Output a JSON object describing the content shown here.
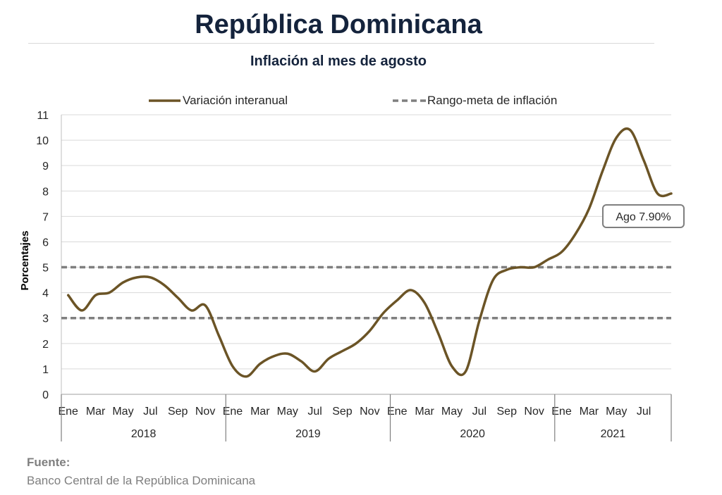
{
  "header": {
    "title": "República Dominicana",
    "subtitle": "Inflación al mes de agosto"
  },
  "source": {
    "label": "Fuente:",
    "text": "Banco Central de la República Dominicana"
  },
  "chart_data": {
    "type": "line",
    "ylabel": "Porcentajes",
    "ylim": [
      0,
      11
    ],
    "yticks": [
      0,
      1,
      2,
      3,
      4,
      5,
      6,
      7,
      8,
      9,
      10,
      11
    ],
    "grid": true,
    "legend_position": "top",
    "month_labels": [
      "Ene",
      "Mar",
      "May",
      "Jul",
      "Sep",
      "Nov",
      "Ene",
      "Mar",
      "May",
      "Jul",
      "Sep",
      "Nov",
      "Ene",
      "Mar",
      "May",
      "Jul",
      "Sep",
      "Nov",
      "Ene",
      "Mar",
      "May",
      "Jul"
    ],
    "years": [
      "2018",
      "2019",
      "2020",
      "2021"
    ],
    "series": [
      {
        "name": "Variación interanual",
        "color": "#6b5426",
        "style": "solid",
        "values": [
          3.9,
          3.3,
          3.9,
          4.0,
          4.4,
          4.6,
          4.6,
          4.3,
          3.8,
          3.3,
          3.5,
          2.3,
          1.1,
          0.7,
          1.2,
          1.5,
          1.6,
          1.3,
          0.9,
          1.4,
          1.7,
          2.0,
          2.5,
          3.2,
          3.7,
          4.1,
          3.6,
          2.4,
          1.1,
          0.9,
          2.9,
          4.5,
          4.9,
          5.0,
          5.0,
          5.3,
          5.6,
          6.3,
          7.3,
          8.8,
          10.1,
          10.4,
          9.2,
          7.9,
          7.9
        ]
      },
      {
        "name": "Rango-meta de inflación",
        "color": "#7f7f7f",
        "style": "dashed",
        "values": [
          3,
          5
        ]
      }
    ],
    "annotations": [
      {
        "text": "Ago 7.90%",
        "target_index": 44,
        "target_value": 7.9
      }
    ]
  }
}
